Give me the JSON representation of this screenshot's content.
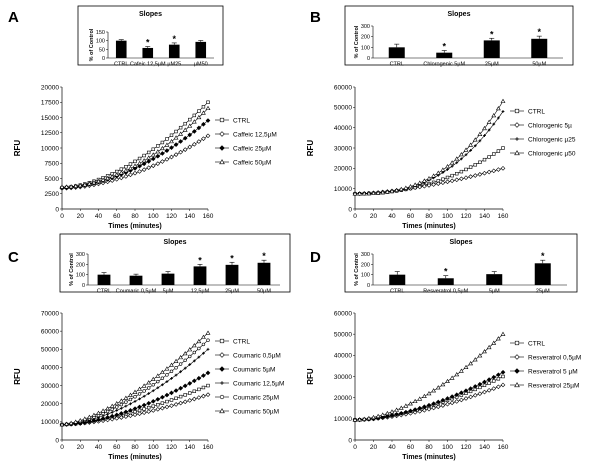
{
  "chart_data": [
    {
      "panel": "A",
      "type": "bar",
      "title": "Slopes",
      "ylabel": "% of Control",
      "categories": [
        "CTRL",
        "Cafeic 12,5µM",
        "µM25",
        "µM50"
      ],
      "values": [
        100,
        58,
        77,
        93
      ],
      "errors": [
        6,
        8,
        10,
        8
      ],
      "significant": [
        false,
        true,
        true,
        false
      ],
      "yticks": [
        0,
        50,
        100,
        150
      ],
      "ylim": [
        0,
        150
      ]
    },
    {
      "panel": "B",
      "type": "bar",
      "title": "Slopes",
      "ylabel": "% of Control",
      "categories": [
        "CTRL",
        "Chlorogenic 5µM",
        "25µM",
        "50µM"
      ],
      "values": [
        100,
        50,
        165,
        180
      ],
      "errors": [
        30,
        20,
        20,
        25
      ],
      "significant": [
        false,
        true,
        true,
        true
      ],
      "yticks": [
        0,
        100,
        200,
        300
      ],
      "ylim": [
        0,
        300
      ]
    },
    {
      "panel": "C",
      "type": "bar",
      "title": "Slopes",
      "ylabel": "% of Control",
      "categories": [
        "CTRL",
        "Coumaric 0,5µM",
        "5µM",
        "12,5µM",
        "25µM",
        "50µM"
      ],
      "values": [
        100,
        90,
        110,
        180,
        195,
        215
      ],
      "errors": [
        20,
        15,
        20,
        20,
        25,
        25
      ],
      "significant": [
        false,
        false,
        false,
        true,
        true,
        true
      ],
      "yticks": [
        0,
        100,
        200,
        300
      ],
      "ylim": [
        0,
        300
      ]
    },
    {
      "panel": "D",
      "type": "bar",
      "title": "Slopes",
      "ylabel": "% of Control",
      "categories": [
        "CTRL",
        "Resveratrol 0,5µM",
        "5µM",
        "25µM"
      ],
      "values": [
        100,
        65,
        105,
        210
      ],
      "errors": [
        30,
        25,
        25,
        30
      ],
      "significant": [
        false,
        true,
        false,
        true
      ],
      "yticks": [
        0,
        100,
        200,
        300
      ],
      "ylim": [
        0,
        300
      ]
    },
    {
      "panel": "A",
      "type": "line",
      "ylabel": "RFU",
      "xlabel": "Times (minutes)",
      "xticks": [
        0,
        20,
        40,
        60,
        80,
        100,
        120,
        140,
        160
      ],
      "yticks": [
        0,
        2500,
        5000,
        7500,
        10000,
        12500,
        15000,
        17500,
        20000
      ],
      "xlim": [
        0,
        160
      ],
      "ylim": [
        0,
        20000
      ],
      "series": [
        {
          "name": "CTRL",
          "marker": "square",
          "start": 3500,
          "end": 17500,
          "exp": 1.7
        },
        {
          "name": "Caffeic 12,5µM",
          "marker": "diamond",
          "start": 3400,
          "end": 12000,
          "exp": 1.8
        },
        {
          "name": "Caffeic 25µM",
          "marker": "filled-diamond",
          "start": 3500,
          "end": 14500,
          "exp": 1.8
        },
        {
          "name": "Caffeic 50µM",
          "marker": "triangle",
          "start": 3600,
          "end": 16500,
          "exp": 1.9
        }
      ]
    },
    {
      "panel": "B",
      "type": "line",
      "ylabel": "RFU",
      "xlabel": "Times (minutes)",
      "xticks": [
        0,
        20,
        40,
        60,
        80,
        100,
        120,
        140,
        160
      ],
      "yticks": [
        0,
        10000,
        20000,
        30000,
        40000,
        50000,
        60000
      ],
      "xlim": [
        0,
        160
      ],
      "ylim": [
        0,
        60000
      ],
      "series": [
        {
          "name": "CTRL",
          "marker": "square",
          "start": 7500,
          "end": 30000,
          "exp": 2.2
        },
        {
          "name": "Chlorogenic 5µ",
          "marker": "diamond",
          "start": 7500,
          "end": 20000,
          "exp": 1.6
        },
        {
          "name": "Chlorogenic µ25",
          "marker": "cross",
          "start": 7500,
          "end": 48000,
          "exp": 2.6
        },
        {
          "name": "Chlorogenic µ50",
          "marker": "triangle",
          "start": 7500,
          "end": 53000,
          "exp": 2.6
        }
      ]
    },
    {
      "panel": "C",
      "type": "line",
      "ylabel": "RFU",
      "xlabel": "Times (minutes)",
      "xticks": [
        0,
        20,
        40,
        60,
        80,
        100,
        120,
        140,
        160
      ],
      "yticks": [
        0,
        10000,
        20000,
        30000,
        40000,
        50000,
        60000,
        70000
      ],
      "xlim": [
        0,
        160
      ],
      "ylim": [
        0,
        70000
      ],
      "series": [
        {
          "name": "CTRL",
          "marker": "square",
          "start": 8500,
          "end": 30000,
          "exp": 1.6
        },
        {
          "name": "Coumaric 0,5µM",
          "marker": "diamond",
          "start": 8500,
          "end": 25000,
          "exp": 1.6
        },
        {
          "name": "Coumaric 5µM",
          "marker": "filled-diamond",
          "start": 8500,
          "end": 37000,
          "exp": 1.7
        },
        {
          "name": "Coumaric 12,5µM",
          "marker": "cross",
          "start": 8500,
          "end": 50000,
          "exp": 1.7
        },
        {
          "name": "Coumaric 25µM",
          "marker": "circle",
          "start": 8500,
          "end": 55000,
          "exp": 1.6
        },
        {
          "name": "Coumaric 50µM",
          "marker": "triangle",
          "start": 8500,
          "end": 59000,
          "exp": 1.5
        }
      ]
    },
    {
      "panel": "D",
      "type": "line",
      "ylabel": "RFU",
      "xlabel": "Times (minutes)",
      "xticks": [
        0,
        20,
        40,
        60,
        80,
        100,
        120,
        140,
        160
      ],
      "yticks": [
        0,
        10000,
        20000,
        30000,
        40000,
        50000,
        60000
      ],
      "xlim": [
        0,
        160
      ],
      "ylim": [
        0,
        60000
      ],
      "series": [
        {
          "name": "CTRL",
          "marker": "square",
          "start": 9500,
          "end": 30000,
          "exp": 1.7
        },
        {
          "name": "Resveratrol 0,5µM",
          "marker": "diamond",
          "start": 9500,
          "end": 26000,
          "exp": 1.7
        },
        {
          "name": "Resveratrol 5 µM",
          "marker": "filled-diamond",
          "start": 9500,
          "end": 32000,
          "exp": 1.7
        },
        {
          "name": "Resveratrol 25µM",
          "marker": "triangle",
          "start": 9500,
          "end": 50000,
          "exp": 1.7
        }
      ]
    }
  ]
}
